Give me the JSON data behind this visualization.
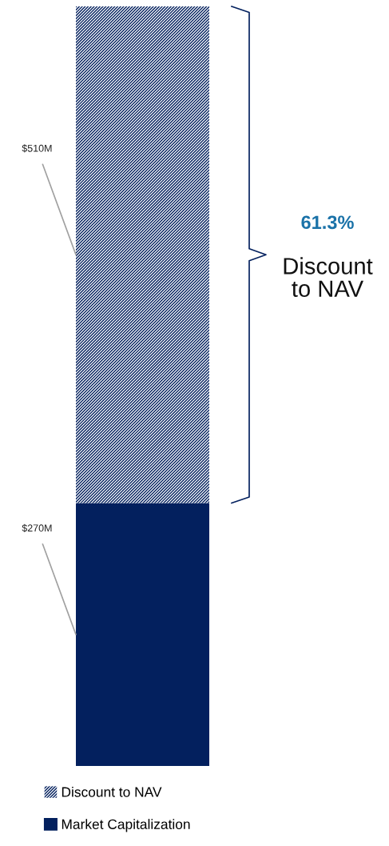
{
  "chart_data": {
    "type": "bar",
    "stacked": true,
    "categories": [
      null
    ],
    "series": [
      {
        "name": "Market Capitalization",
        "color": "#03205e",
        "values": [
          270
        ],
        "value_labels": [
          "$270M"
        ]
      },
      {
        "name": "Discount to NAV",
        "color": "#03205e",
        "values": [
          510
        ],
        "value_labels": [
          "$510M"
        ]
      }
    ],
    "annotations": [
      "61.3%",
      "Discount\nto NAV"
    ],
    "legend": "bottom left"
  }
}
